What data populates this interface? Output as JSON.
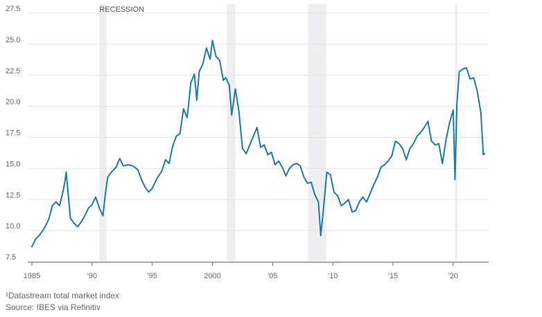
{
  "chart_data": {
    "type": "line",
    "title": "",
    "xlabel": "",
    "ylabel": "",
    "xlim": [
      1985.0,
      2023.0
    ],
    "ylim": [
      7.5,
      27.5
    ],
    "yticks": [
      7.5,
      10.0,
      12.5,
      15.0,
      17.5,
      20.0,
      22.5,
      25.0,
      27.5
    ],
    "ytick_labels": [
      "7.5",
      "10.0",
      "12.5",
      "15.0",
      "17.5",
      "20.0",
      "22.5",
      "25.0",
      "27.5"
    ],
    "xticks": [
      1985,
      1990,
      1995,
      2000,
      2005,
      2010,
      2015,
      2020
    ],
    "xtick_labels": [
      "1985",
      "'90",
      "'95",
      "2000",
      "'05",
      "'10",
      "'15",
      "'20"
    ],
    "line_color": "#1a7aa8",
    "recession_color": "#eeeef0",
    "recession_label": "RECESSION",
    "recessions": [
      [
        1990.6,
        1991.2
      ],
      [
        2001.2,
        2001.9
      ],
      [
        2007.95,
        2009.45
      ],
      [
        2020.15,
        2020.35
      ]
    ],
    "series": [
      {
        "name": "Datastream total market index",
        "x": [
          1985.0,
          1985.3,
          1985.6,
          1985.9,
          1986.1,
          1986.4,
          1986.7,
          1987.0,
          1987.3,
          1987.6,
          1987.75,
          1987.85,
          1988.2,
          1988.5,
          1988.8,
          1989.1,
          1989.4,
          1989.7,
          1990.0,
          1990.3,
          1990.6,
          1990.9,
          1991.1,
          1991.3,
          1991.6,
          1992.0,
          1992.3,
          1992.6,
          1993.0,
          1993.4,
          1993.8,
          1994.1,
          1994.4,
          1994.7,
          1995.0,
          1995.4,
          1995.8,
          1996.1,
          1996.4,
          1996.7,
          1997.0,
          1997.3,
          1997.6,
          1997.9,
          1998.2,
          1998.5,
          1998.7,
          1998.9,
          1999.2,
          1999.5,
          1999.8,
          2000.0,
          2000.3,
          2000.6,
          2000.9,
          2001.1,
          2001.4,
          2001.6,
          2001.9,
          2002.2,
          2002.5,
          2002.8,
          2003.1,
          2003.4,
          2003.7,
          2004.0,
          2004.3,
          2004.6,
          2004.9,
          2005.2,
          2005.5,
          2005.8,
          2006.1,
          2006.4,
          2006.7,
          2007.0,
          2007.3,
          2007.6,
          2007.9,
          2008.2,
          2008.5,
          2008.8,
          2009.0,
          2009.2,
          2009.5,
          2009.8,
          2010.1,
          2010.4,
          2010.7,
          2011.0,
          2011.3,
          2011.6,
          2011.9,
          2012.2,
          2012.5,
          2012.8,
          2013.1,
          2013.4,
          2013.7,
          2014.0,
          2014.3,
          2014.6,
          2014.9,
          2015.2,
          2015.5,
          2015.8,
          2016.1,
          2016.4,
          2016.7,
          2017.0,
          2017.3,
          2017.6,
          2017.9,
          2018.2,
          2018.5,
          2018.8,
          2019.1,
          2019.4,
          2019.7,
          2020.0,
          2020.15,
          2020.3,
          2020.5,
          2020.8,
          2021.1,
          2021.4,
          2021.7,
          2022.0,
          2022.3,
          2022.5,
          2022.6
        ],
        "values": [
          8.7,
          9.3,
          9.6,
          10.0,
          10.3,
          10.9,
          12.0,
          12.3,
          12.0,
          13.2,
          14.0,
          14.7,
          11.0,
          10.6,
          10.3,
          10.7,
          11.2,
          11.8,
          12.1,
          12.7,
          11.8,
          11.2,
          12.9,
          14.3,
          14.7,
          15.1,
          15.8,
          15.2,
          15.3,
          15.2,
          14.9,
          14.1,
          13.5,
          13.1,
          13.4,
          14.2,
          14.8,
          15.7,
          15.4,
          16.8,
          17.6,
          17.8,
          19.8,
          19.1,
          21.9,
          22.6,
          20.5,
          22.8,
          23.4,
          24.7,
          23.8,
          25.3,
          24.0,
          23.7,
          22.1,
          22.3,
          21.7,
          19.3,
          21.4,
          19.6,
          16.6,
          16.2,
          16.9,
          17.6,
          18.3,
          16.7,
          16.9,
          16.1,
          16.3,
          15.3,
          15.6,
          15.1,
          14.4,
          15.0,
          15.3,
          15.4,
          15.2,
          14.3,
          13.8,
          13.9,
          12.9,
          12.3,
          9.6,
          11.5,
          14.7,
          14.5,
          13.1,
          12.8,
          12.0,
          12.2,
          12.5,
          11.5,
          11.6,
          12.3,
          12.7,
          12.3,
          13.0,
          13.7,
          14.3,
          15.1,
          15.3,
          15.6,
          16.0,
          17.2,
          17.0,
          16.6,
          15.7,
          16.6,
          17.0,
          17.6,
          17.9,
          18.3,
          18.8,
          17.2,
          16.9,
          17.0,
          15.4,
          17.3,
          18.7,
          19.7,
          14.1,
          20.1,
          22.8,
          23.0,
          23.1,
          22.2,
          22.3,
          21.2,
          19.5,
          16.1,
          16.2
        ]
      }
    ]
  },
  "footnote": "¹Datastream total market index",
  "source": "Source: IBES via Refinitiv"
}
